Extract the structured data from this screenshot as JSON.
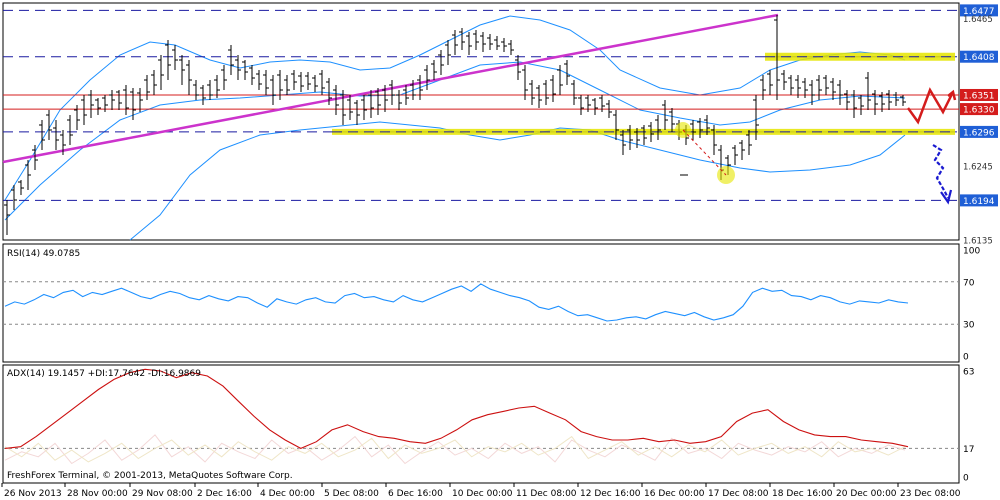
{
  "chart_data": {
    "type": "candlestick",
    "instrument_panel": {
      "y_ticks": [
        "1.6477",
        "1.6465",
        "1.6408",
        "1.6351",
        "1.6330",
        "1.6296",
        "1.6245",
        "1.6194",
        "1.6135"
      ],
      "levels": [
        {
          "value": "1.6477",
          "color": "#1a1aa0",
          "highlight": "#1f5fd6"
        },
        {
          "value": "1.6408",
          "color": "#1a1aa0",
          "highlight": "#1f5fd6"
        },
        {
          "value": "1.6351",
          "color": "#d41c1c",
          "highlight": "#d41c1c"
        },
        {
          "value": "1.6330",
          "color": "#d41c1c",
          "highlight": "#d41c1c"
        },
        {
          "value": "1.6296",
          "color": "#1a1aa0",
          "highlight": "#1f5fd6"
        },
        {
          "value": "1.6194",
          "color": "#1a1aa0",
          "highlight": "#1f5fd6"
        }
      ],
      "ylim": [
        1.6135,
        1.6488
      ],
      "bollinger_color": "#1e90ff",
      "trendline_color": "#cc33cc",
      "support_zone_color": "#e6e600"
    },
    "rsi_panel": {
      "label": "RSI(14) 49.0785",
      "y_ticks": [
        "100",
        "70",
        "30",
        "0"
      ],
      "values": [
        47,
        51,
        49,
        53,
        58,
        55,
        60,
        62,
        56,
        60,
        58,
        61,
        64,
        60,
        56,
        54,
        58,
        61,
        59,
        55,
        53,
        57,
        54,
        52,
        56,
        55,
        50,
        46,
        54,
        51,
        49,
        53,
        55,
        51,
        50,
        57,
        59,
        55,
        56,
        53,
        51,
        57,
        53,
        51,
        55,
        59,
        63,
        66,
        61,
        68,
        63,
        60,
        57,
        55,
        52,
        46,
        44,
        47,
        42,
        38,
        39,
        36,
        33,
        34,
        36,
        37,
        35,
        39,
        42,
        40,
        38,
        41,
        37,
        34,
        36,
        39,
        47,
        60,
        64,
        61,
        62,
        57,
        56,
        53,
        57,
        55,
        51,
        49,
        52,
        51,
        50,
        53,
        51,
        50
      ],
      "color": "#1e90ff"
    },
    "adx_panel": {
      "label": "ADX(14) 19.1457 +DI:17.7642 -DI:16.9869",
      "y_ticks": [
        "63",
        "17",
        "0"
      ],
      "adx_values": [
        17,
        18,
        24,
        31,
        38,
        45,
        52,
        58,
        62,
        64,
        63,
        59,
        62,
        60,
        54,
        45,
        36,
        28,
        22,
        17,
        21,
        28,
        31,
        27,
        24,
        23,
        21,
        20,
        23,
        28,
        34,
        37,
        39,
        41,
        42,
        38,
        34,
        27,
        24,
        22,
        22,
        23,
        21,
        22,
        20,
        21,
        24,
        33,
        38,
        40,
        33,
        28,
        25,
        24,
        24,
        22,
        21,
        20,
        18
      ],
      "adx_color": "#cc1010",
      "di_color": "#f3d8d8"
    },
    "x_ticks": [
      "26 Nov 2013",
      "28 Nov 00:00",
      "29 Nov 08:00",
      "2 Dec 16:00",
      "4 Dec 00:00",
      "5 Dec 08:00",
      "6 Dec 16:00",
      "10 Dec 00:00",
      "11 Dec 08:00",
      "12 Dec 16:00",
      "16 Dec 00:00",
      "17 Dec 08:00",
      "18 Dec 16:00",
      "20 Dec 00:00",
      "23 Dec 08:00"
    ],
    "forecast": {
      "red_path_color": "#d41c1c",
      "blue_path_color": "#1a1ad0"
    }
  },
  "footer": {
    "copyright": "FreshForex Terminal, © 2001-2013, MetaQuotes Software Corp."
  }
}
